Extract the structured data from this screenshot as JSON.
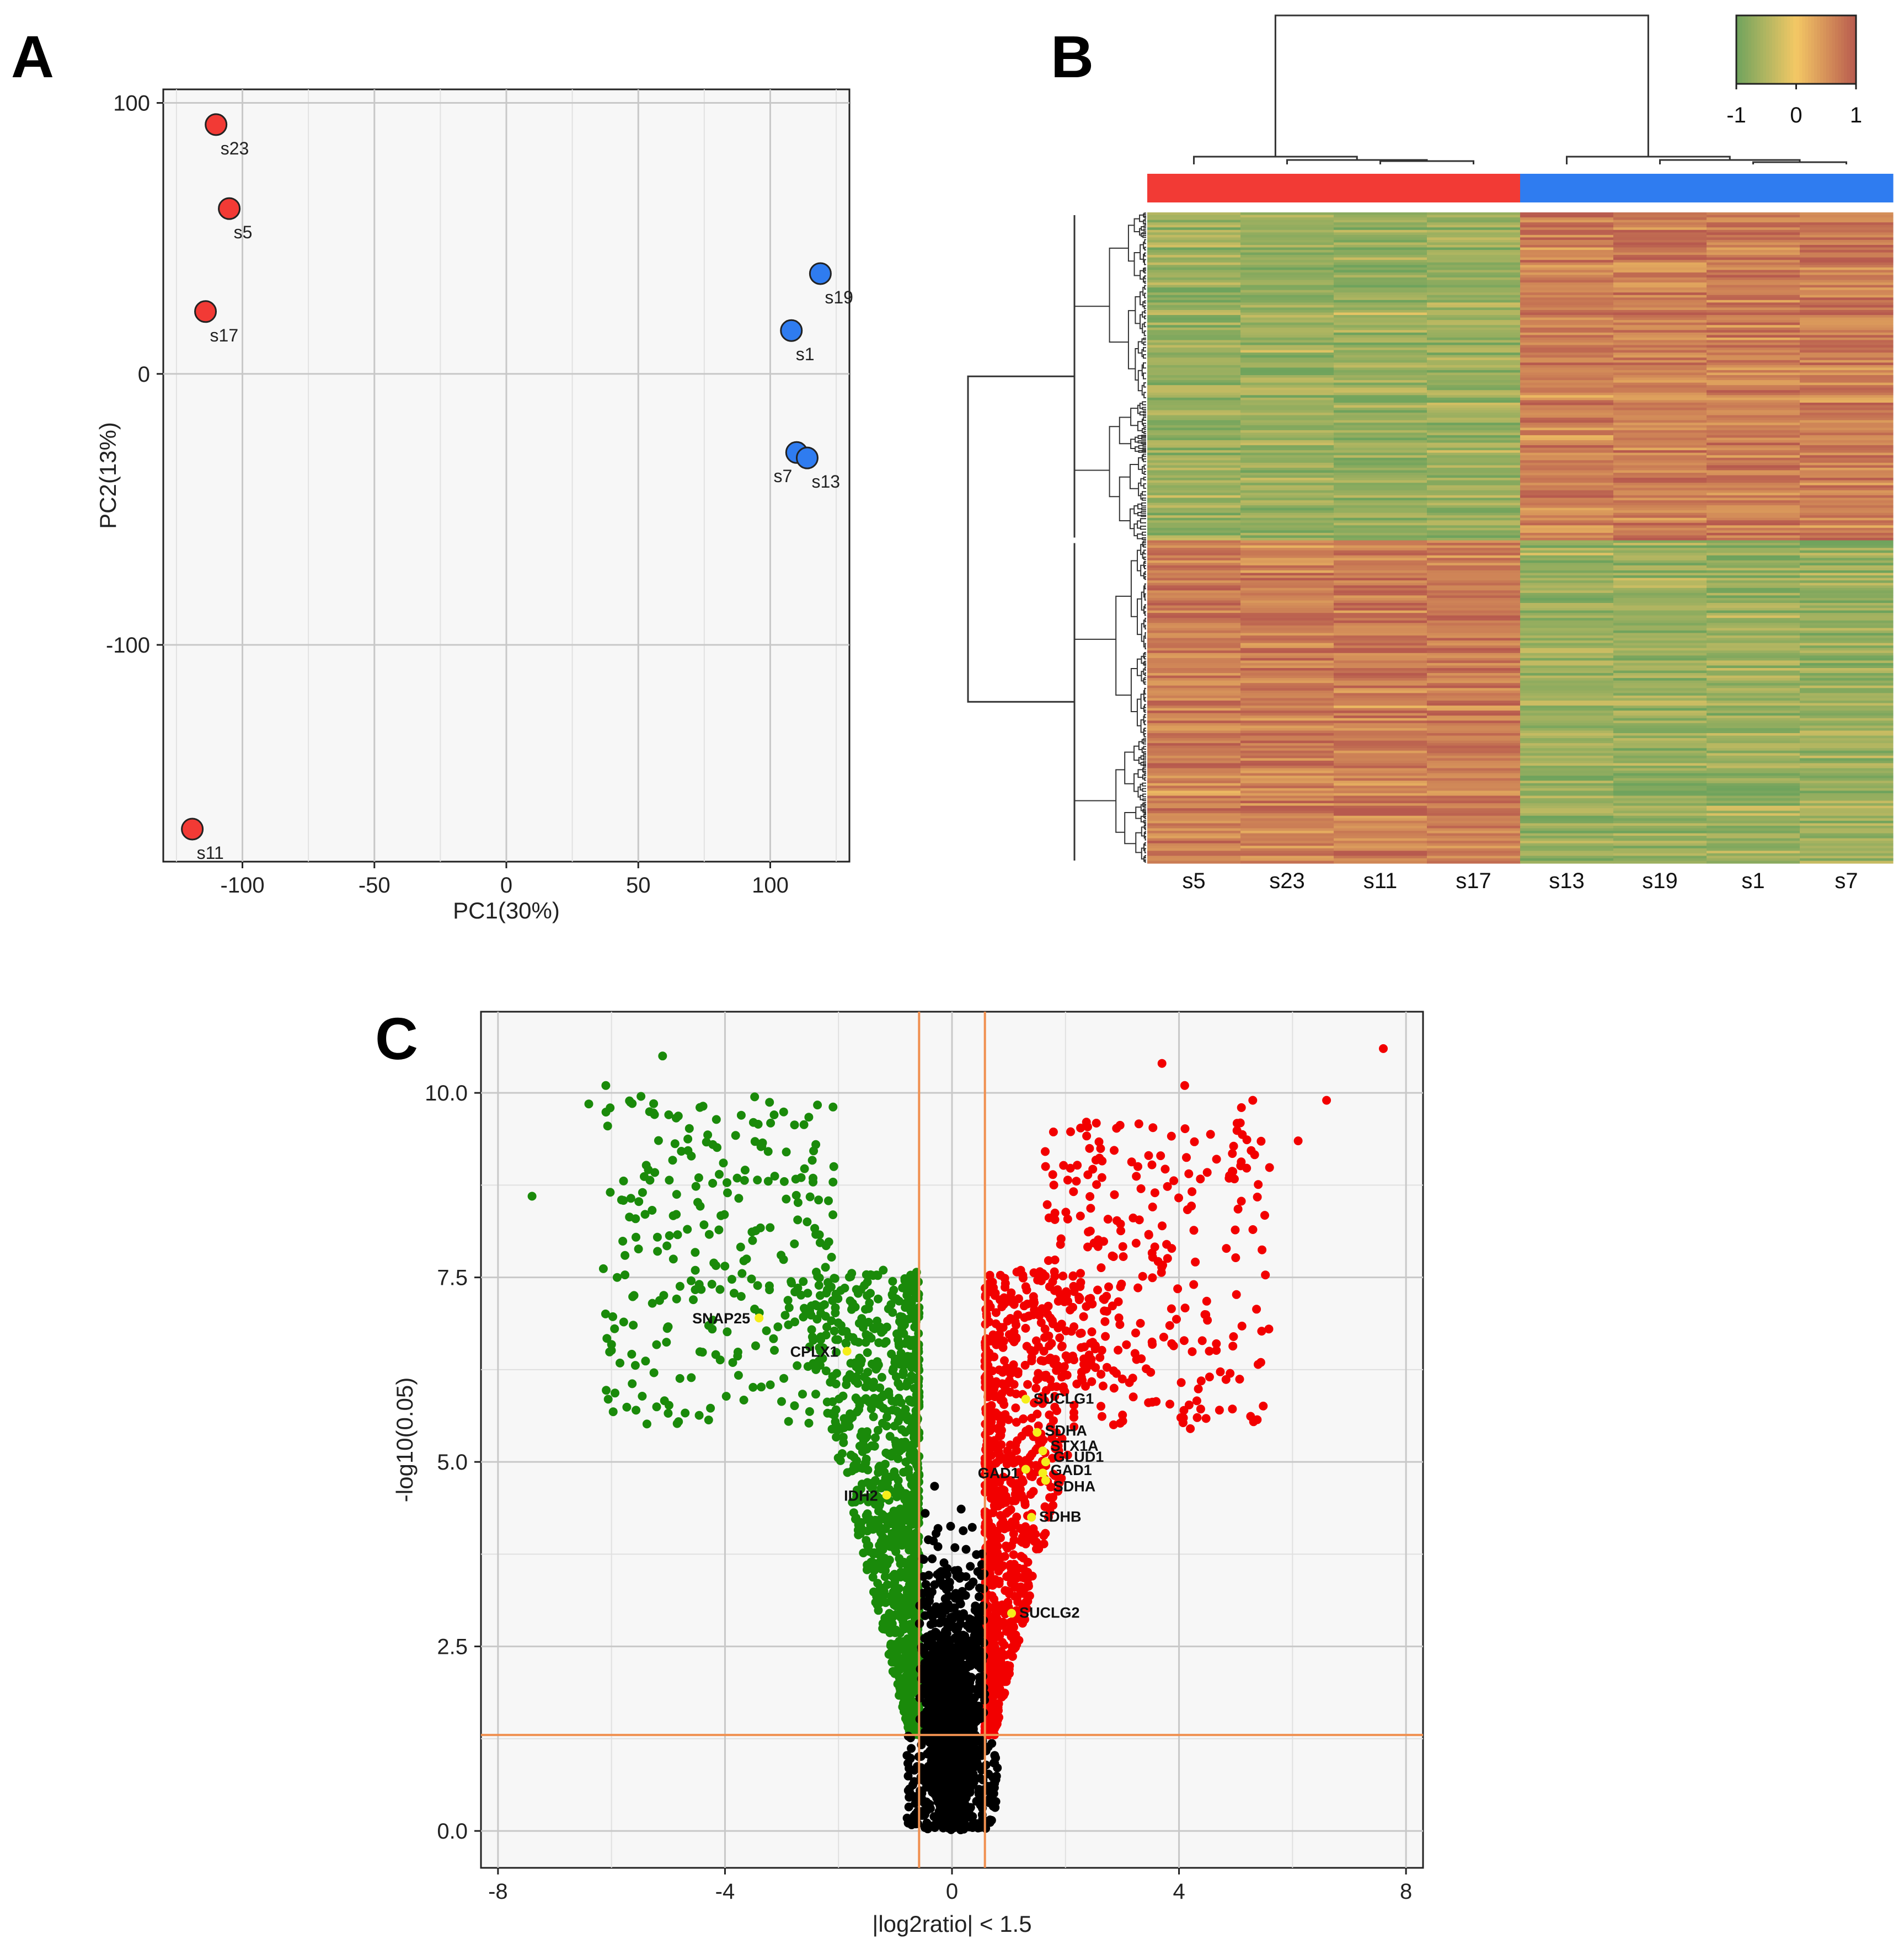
{
  "colors": {
    "group_red": "#f23a35",
    "group_blue": "#2f7cf0",
    "up_red": "#f20000",
    "down_green": "#1a8a0a",
    "ns_black": "#000000",
    "highlight_yellow": "#f5ee1a",
    "threshold_orange": "#f09050",
    "panel_bg": "#f7f7f7",
    "grid": "#c8c8c8",
    "heat_low": "#6fa35d",
    "heat_mid": "#f4c865",
    "heat_high": "#b75a4e"
  },
  "panels": {
    "A": {
      "letter": "A"
    },
    "B": {
      "letter": "B"
    },
    "C": {
      "letter": "C"
    }
  },
  "chart_data": [
    {
      "id": "pca",
      "type": "scatter",
      "title": "",
      "xlabel": "PC1(30%)",
      "ylabel": "PC2(13%)",
      "xlim": [
        -130,
        130
      ],
      "ylim": [
        -180,
        105
      ],
      "xticks": [
        -100,
        -50,
        0,
        50,
        100
      ],
      "xtick_labels": [
        "-100",
        "-50",
        "0",
        "50",
        "100"
      ],
      "yticks": [
        100,
        0,
        -100
      ],
      "ytick_labels": [
        "100",
        "0",
        "-100"
      ],
      "grid": true,
      "points": [
        {
          "label": "s23",
          "x": -110,
          "y": 92,
          "group": "red"
        },
        {
          "label": "s5",
          "x": -105,
          "y": 61,
          "group": "red"
        },
        {
          "label": "s17",
          "x": -114,
          "y": 23,
          "group": "red"
        },
        {
          "label": "s11",
          "x": -119,
          "y": -168,
          "group": "red"
        },
        {
          "label": "s19",
          "x": 119,
          "y": 37,
          "group": "blue"
        },
        {
          "label": "s1",
          "x": 108,
          "y": 16,
          "group": "blue"
        },
        {
          "label": "s7",
          "x": 110,
          "y": -29,
          "group": "blue"
        },
        {
          "label": "s13",
          "x": 114,
          "y": -31,
          "group": "blue"
        }
      ]
    },
    {
      "id": "heatmap",
      "type": "heatmap",
      "columns": [
        "s5",
        "s23",
        "s11",
        "s17",
        "s13",
        "s19",
        "s1",
        "s7"
      ],
      "column_groups": [
        "red",
        "red",
        "red",
        "red",
        "blue",
        "blue",
        "blue",
        "blue"
      ],
      "row_clusters": [
        {
          "name": "upper",
          "fraction": 0.505,
          "pattern": [
            -1,
            -1,
            -1,
            -1,
            1,
            1,
            1,
            1
          ]
        },
        {
          "name": "lower",
          "fraction": 0.495,
          "pattern": [
            1,
            1,
            1,
            1,
            -1,
            -1,
            -1,
            -1
          ]
        }
      ],
      "color_scale": {
        "min": -1,
        "mid": 0,
        "max": 1,
        "tick_labels": [
          "-1",
          "0",
          "1"
        ]
      },
      "column_dendrogram": "two main clusters: {s5, s23, s11, s17} and {s13, s19, s1, s7}",
      "row_dendrogram": "two main clusters matching upper/lower blocks"
    },
    {
      "id": "volcano",
      "type": "scatter",
      "xlabel": "|log2ratio| < 1.5",
      "ylabel": "-log10(0.05)",
      "xlim": [
        -8.3,
        8.3
      ],
      "ylim": [
        -0.5,
        11.1
      ],
      "xticks": [
        -8,
        -4,
        0,
        4,
        8
      ],
      "xtick_labels": [
        "-8",
        "-4",
        "0",
        "4",
        "8"
      ],
      "yticks": [
        0.0,
        2.5,
        5.0,
        7.5,
        10.0
      ],
      "ytick_labels": [
        "0.0",
        "2.5",
        "5.0",
        "7.5",
        "10.0"
      ],
      "grid": true,
      "thresholds": {
        "x": [
          -0.58,
          0.58
        ],
        "y": 1.3
      },
      "labeled_genes": [
        {
          "label": "SNAP25",
          "x": -3.4,
          "y": 6.95
        },
        {
          "label": "CPLX1",
          "x": -1.85,
          "y": 6.5
        },
        {
          "label": "IDH2",
          "x": -1.15,
          "y": 4.55
        },
        {
          "label": "SUCLG1",
          "x": 1.3,
          "y": 5.85
        },
        {
          "label": "SDHA",
          "x": 1.5,
          "y": 5.4
        },
        {
          "label": "STX1A",
          "x": 1.6,
          "y": 5.15
        },
        {
          "label": "GLUD1",
          "x": 1.65,
          "y": 5.0
        },
        {
          "label": "GAD1",
          "x": 1.6,
          "y": 4.85
        },
        {
          "label": "SDHA",
          "x": 1.65,
          "y": 4.75
        },
        {
          "label": "GAD1",
          "x": 1.3,
          "y": 4.9
        },
        {
          "label": "SDHB",
          "x": 1.4,
          "y": 4.25
        },
        {
          "label": "SUCLG2",
          "x": 1.05,
          "y": 2.95
        }
      ],
      "groups": [
        {
          "name": "down",
          "color": "green"
        },
        {
          "name": "ns",
          "color": "black"
        },
        {
          "name": "up",
          "color": "red"
        }
      ]
    }
  ]
}
